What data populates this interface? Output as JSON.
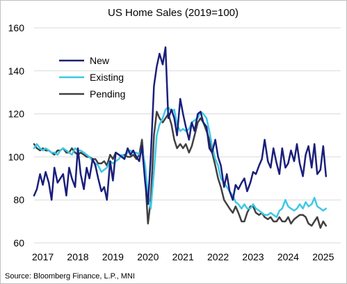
{
  "chart_data": {
    "type": "line",
    "title": "US Home Sales (2019=100)",
    "xlabel": "",
    "ylabel": "",
    "ylim": [
      60,
      160
    ],
    "yticks": [
      60,
      80,
      100,
      120,
      140,
      160
    ],
    "xlim": [
      2017.0,
      2025.75
    ],
    "xticks": [
      "2017",
      "2018",
      "2019",
      "2020",
      "2021",
      "2022",
      "2023",
      "2024",
      "2025"
    ],
    "grid": true,
    "legend_position": "upper-left",
    "source": "Source: Bloomberg Finance, L.P., MNI",
    "series": [
      {
        "name": "New",
        "color": "#1a1f7a",
        "x": [
          2017.0,
          2017.08,
          2017.17,
          2017.25,
          2017.33,
          2017.42,
          2017.5,
          2017.58,
          2017.67,
          2017.75,
          2017.83,
          2017.92,
          2018.0,
          2018.08,
          2018.17,
          2018.25,
          2018.33,
          2018.42,
          2018.5,
          2018.58,
          2018.67,
          2018.75,
          2018.83,
          2018.92,
          2019.0,
          2019.08,
          2019.17,
          2019.25,
          2019.33,
          2019.42,
          2019.5,
          2019.58,
          2019.67,
          2019.75,
          2019.83,
          2019.92,
          2020.0,
          2020.08,
          2020.17,
          2020.25,
          2020.33,
          2020.42,
          2020.5,
          2020.58,
          2020.67,
          2020.75,
          2020.83,
          2020.92,
          2021.0,
          2021.08,
          2021.17,
          2021.25,
          2021.33,
          2021.42,
          2021.5,
          2021.58,
          2021.67,
          2021.75,
          2021.83,
          2021.92,
          2022.0,
          2022.08,
          2022.17,
          2022.25,
          2022.33,
          2022.42,
          2022.5,
          2022.58,
          2022.67,
          2022.75,
          2022.83,
          2022.92,
          2023.0,
          2023.08,
          2023.17,
          2023.25,
          2023.33,
          2023.42,
          2023.5,
          2023.58,
          2023.67,
          2023.75,
          2023.83,
          2023.92,
          2024.0,
          2024.08,
          2024.17,
          2024.25,
          2024.33,
          2024.42,
          2024.5,
          2024.58,
          2024.67,
          2024.75,
          2024.83,
          2024.92,
          2025.0,
          2025.08,
          2025.17,
          2025.25,
          2025.33
        ],
        "values": [
          82,
          85,
          92,
          87,
          93,
          88,
          80,
          95,
          88,
          90,
          92,
          82,
          95,
          90,
          86,
          104,
          92,
          85,
          95,
          90,
          99,
          96,
          90,
          84,
          86,
          80,
          98,
          89,
          102,
          101,
          100,
          99,
          104,
          101,
          103,
          100,
          98,
          105,
          88,
          78,
          100,
          133,
          142,
          148,
          143,
          151,
          118,
          122,
          118,
          110,
          127,
          120,
          114,
          108,
          116,
          112,
          120,
          121,
          116,
          114,
          104,
          102,
          108,
          100,
          96,
          86,
          92,
          84,
          80,
          87,
          85,
          88,
          90,
          84,
          88,
          93,
          92,
          96,
          99,
          108,
          98,
          95,
          104,
          97,
          92,
          104,
          95,
          97,
          103,
          98,
          106,
          97,
          91,
          101,
          105,
          95,
          106,
          92,
          94,
          105,
          91
        ]
      },
      {
        "name": "Existing",
        "color": "#3ec8e6",
        "x": [
          2017.0,
          2017.08,
          2017.17,
          2017.25,
          2017.33,
          2017.42,
          2017.5,
          2017.58,
          2017.67,
          2017.75,
          2017.83,
          2017.92,
          2018.0,
          2018.08,
          2018.17,
          2018.25,
          2018.33,
          2018.42,
          2018.5,
          2018.58,
          2018.67,
          2018.75,
          2018.83,
          2018.92,
          2019.0,
          2019.08,
          2019.17,
          2019.25,
          2019.33,
          2019.42,
          2019.5,
          2019.58,
          2019.67,
          2019.75,
          2019.83,
          2019.92,
          2020.0,
          2020.08,
          2020.17,
          2020.25,
          2020.33,
          2020.42,
          2020.5,
          2020.58,
          2020.67,
          2020.75,
          2020.83,
          2020.92,
          2021.0,
          2021.08,
          2021.17,
          2021.25,
          2021.33,
          2021.42,
          2021.5,
          2021.58,
          2021.67,
          2021.75,
          2021.83,
          2021.92,
          2022.0,
          2022.08,
          2022.17,
          2022.25,
          2022.33,
          2022.42,
          2022.5,
          2022.58,
          2022.67,
          2022.75,
          2022.83,
          2022.92,
          2023.0,
          2023.08,
          2023.17,
          2023.25,
          2023.33,
          2023.42,
          2023.5,
          2023.58,
          2023.67,
          2023.75,
          2023.83,
          2023.92,
          2024.0,
          2024.08,
          2024.17,
          2024.25,
          2024.33,
          2024.42,
          2024.5,
          2024.58,
          2024.67,
          2024.75,
          2024.83,
          2024.92,
          2025.0,
          2025.08,
          2025.17,
          2025.25,
          2025.33
        ],
        "values": [
          104,
          106,
          104,
          103,
          104,
          103,
          102,
          102,
          101,
          103,
          104,
          103,
          102,
          101,
          104,
          103,
          103,
          102,
          101,
          100,
          98,
          97,
          96,
          93,
          94,
          95,
          98,
          97,
          98,
          99,
          101,
          100,
          102,
          103,
          102,
          102,
          101,
          104,
          96,
          82,
          76,
          93,
          110,
          115,
          118,
          122,
          123,
          121,
          122,
          115,
          112,
          113,
          112,
          113,
          116,
          117,
          118,
          121,
          120,
          118,
          112,
          105,
          99,
          96,
          90,
          88,
          86,
          84,
          82,
          79,
          78,
          76,
          78,
          76,
          76,
          78,
          76,
          75,
          74,
          73,
          73,
          74,
          73,
          72,
          75,
          76,
          80,
          77,
          76,
          75,
          76,
          78,
          76,
          79,
          77,
          78,
          81,
          77,
          76,
          75,
          76
        ]
      },
      {
        "name": "Pending",
        "color": "#404040",
        "x": [
          2017.0,
          2017.08,
          2017.17,
          2017.25,
          2017.33,
          2017.42,
          2017.5,
          2017.58,
          2017.67,
          2017.75,
          2017.83,
          2017.92,
          2018.0,
          2018.08,
          2018.17,
          2018.25,
          2018.33,
          2018.42,
          2018.5,
          2018.58,
          2018.67,
          2018.75,
          2018.83,
          2018.92,
          2019.0,
          2019.08,
          2019.17,
          2019.25,
          2019.33,
          2019.42,
          2019.5,
          2019.58,
          2019.67,
          2019.75,
          2019.83,
          2019.92,
          2020.0,
          2020.08,
          2020.17,
          2020.25,
          2020.33,
          2020.42,
          2020.5,
          2020.58,
          2020.67,
          2020.75,
          2020.83,
          2020.92,
          2021.0,
          2021.08,
          2021.17,
          2021.25,
          2021.33,
          2021.42,
          2021.5,
          2021.58,
          2021.67,
          2021.75,
          2021.83,
          2021.92,
          2022.0,
          2022.08,
          2022.17,
          2022.25,
          2022.33,
          2022.42,
          2022.5,
          2022.58,
          2022.67,
          2022.75,
          2022.83,
          2022.92,
          2023.0,
          2023.08,
          2023.17,
          2023.25,
          2023.33,
          2023.42,
          2023.5,
          2023.58,
          2023.67,
          2023.75,
          2023.83,
          2023.92,
          2024.0,
          2024.08,
          2024.17,
          2024.25,
          2024.33,
          2024.42,
          2024.5,
          2024.58,
          2024.67,
          2024.75,
          2024.83,
          2024.92,
          2025.0,
          2025.08,
          2025.17,
          2025.25,
          2025.33
        ],
        "values": [
          106,
          104,
          103,
          104,
          103,
          103,
          102,
          101,
          103,
          103,
          104,
          102,
          102,
          104,
          102,
          101,
          102,
          101,
          100,
          100,
          99,
          99,
          97,
          97,
          98,
          96,
          101,
          99,
          102,
          101,
          100,
          101,
          100,
          100,
          101,
          99,
          101,
          108,
          90,
          69,
          80,
          110,
          121,
          118,
          116,
          118,
          120,
          115,
          108,
          104,
          106,
          104,
          106,
          102,
          105,
          110,
          116,
          118,
          116,
          112,
          108,
          102,
          96,
          90,
          86,
          80,
          78,
          76,
          74,
          77,
          74,
          70,
          70,
          74,
          77,
          77,
          74,
          73,
          74,
          72,
          71,
          72,
          70,
          70,
          72,
          70,
          70,
          72,
          69,
          71,
          72,
          73,
          73,
          72,
          69,
          68,
          70,
          72,
          67,
          70,
          68
        ]
      }
    ]
  }
}
